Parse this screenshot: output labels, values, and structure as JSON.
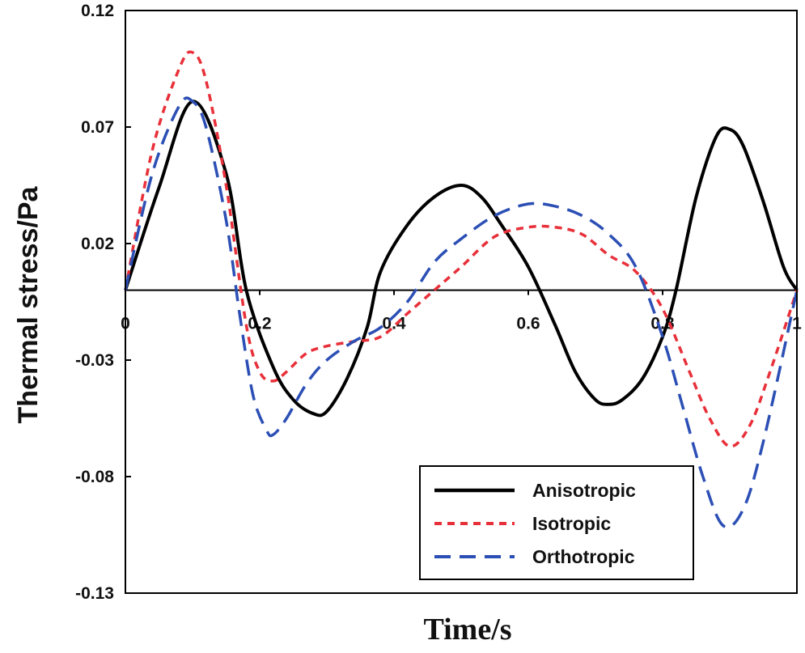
{
  "chart_data": {
    "type": "line",
    "xlabel": "Time/s",
    "ylabel": "Thermal stress/Pa",
    "xlim": [
      0,
      1
    ],
    "ylim": [
      -0.13,
      0.12
    ],
    "x_ticks": [
      0,
      0.2,
      0.4,
      0.6,
      0.8,
      1
    ],
    "x_tick_labels": [
      "0",
      "0.2",
      "0.4",
      "0.6",
      "0.8",
      "1"
    ],
    "y_ticks": [
      0.12,
      0.07,
      0.02,
      -0.03,
      -0.08,
      -0.13
    ],
    "y_tick_labels": [
      "0.12",
      "0.07",
      "0.02",
      "-0.03",
      "-0.08",
      "-0.13"
    ],
    "zero_line": true,
    "grid": false,
    "legend_position": "bottom-right",
    "series": [
      {
        "name": "Anisotropic",
        "color": "#000000",
        "style": "solid",
        "x": [
          0,
          0.05,
          0.1,
          0.15,
          0.18,
          0.22,
          0.25,
          0.28,
          0.3,
          0.33,
          0.36,
          0.38,
          0.42,
          0.46,
          0.5,
          0.53,
          0.56,
          0.6,
          0.64,
          0.67,
          0.7,
          0.72,
          0.74,
          0.77,
          0.8,
          0.82,
          0.85,
          0.88,
          0.9,
          0.92,
          0.95,
          0.98,
          1.0
        ],
        "y": [
          0,
          0.044,
          0.081,
          0.05,
          0.0,
          -0.033,
          -0.047,
          -0.053,
          -0.052,
          -0.038,
          -0.016,
          0.008,
          0.028,
          0.04,
          0.045,
          0.04,
          0.028,
          0.01,
          -0.015,
          -0.035,
          -0.047,
          -0.049,
          -0.047,
          -0.038,
          -0.02,
          0.0,
          0.04,
          0.066,
          0.069,
          0.062,
          0.038,
          0.01,
          0.0
        ]
      },
      {
        "name": "Isotropic",
        "color": "#e8303a",
        "style": "short-dash",
        "x": [
          0,
          0.04,
          0.08,
          0.1,
          0.12,
          0.15,
          0.18,
          0.2,
          0.22,
          0.24,
          0.27,
          0.3,
          0.34,
          0.38,
          0.42,
          0.46,
          0.5,
          0.55,
          0.6,
          0.64,
          0.68,
          0.72,
          0.76,
          0.8,
          0.84,
          0.87,
          0.9,
          0.93,
          0.96,
          1.0
        ],
        "y": [
          0,
          0.06,
          0.095,
          0.102,
          0.09,
          0.045,
          -0.015,
          -0.035,
          -0.039,
          -0.035,
          -0.027,
          -0.024,
          -0.022,
          -0.02,
          -0.01,
          0.0,
          0.01,
          0.023,
          0.027,
          0.027,
          0.024,
          0.015,
          0.008,
          -0.008,
          -0.035,
          -0.055,
          -0.067,
          -0.058,
          -0.035,
          0.0
        ]
      },
      {
        "name": "Orthotropic",
        "color": "#2c4fb5",
        "style": "long-dash",
        "x": [
          0,
          0.04,
          0.08,
          0.1,
          0.12,
          0.15,
          0.17,
          0.19,
          0.21,
          0.22,
          0.24,
          0.27,
          0.3,
          0.34,
          0.38,
          0.42,
          0.46,
          0.5,
          0.55,
          0.6,
          0.64,
          0.68,
          0.72,
          0.76,
          0.8,
          0.83,
          0.86,
          0.89,
          0.92,
          0.95,
          1.0
        ],
        "y": [
          0,
          0.05,
          0.079,
          0.081,
          0.07,
          0.03,
          -0.01,
          -0.045,
          -0.06,
          -0.062,
          -0.055,
          -0.04,
          -0.03,
          -0.022,
          -0.016,
          -0.005,
          0.012,
          0.022,
          0.032,
          0.037,
          0.036,
          0.032,
          0.024,
          0.01,
          -0.02,
          -0.05,
          -0.08,
          -0.101,
          -0.094,
          -0.065,
          0.0
        ]
      }
    ]
  }
}
